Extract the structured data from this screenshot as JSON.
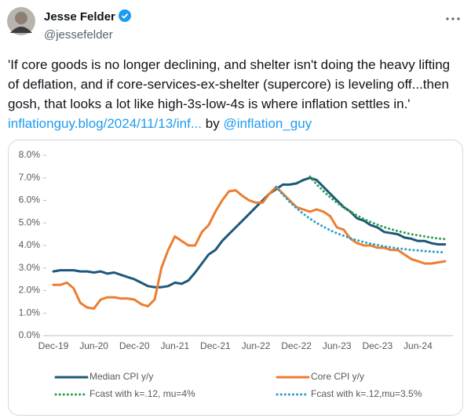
{
  "tweet": {
    "name": "Jesse Felder",
    "handle": "@jessefelder",
    "text": [
      "'If core goods is no longer declining, and shelter isn't doing the heavy lifting of deflation, and if core-services-ex-shelter (supercore) is leveling off...then gosh, that looks a lot like high-3s-low-4s is where inflation settles in.' ",
      "inflationguy.blog/2024/11/13/inf...",
      "by",
      "@inflation_guy"
    ]
  },
  "chart_data": {
    "type": "line",
    "categories": [
      "Dec-19",
      null,
      null,
      null,
      null,
      null,
      "Jun-20",
      null,
      null,
      null,
      null,
      null,
      "Dec-20",
      null,
      null,
      null,
      null,
      null,
      "Jun-21",
      null,
      null,
      null,
      null,
      null,
      "Dec-21",
      null,
      null,
      null,
      null,
      null,
      "Jun-22",
      null,
      null,
      null,
      null,
      null,
      "Dec-22",
      null,
      null,
      null,
      null,
      null,
      "Jun-23",
      null,
      null,
      null,
      null,
      null,
      "Dec-23",
      null,
      null,
      null,
      null,
      null,
      "Jun-24",
      null,
      null,
      null,
      null
    ],
    "ylim": [
      0,
      8
    ],
    "yticks": [
      {
        "value": 0,
        "label": "0.0%"
      },
      {
        "value": 1,
        "label": "1.0%"
      },
      {
        "value": 2,
        "label": "2.0%"
      },
      {
        "value": 3,
        "label": "3.0%"
      },
      {
        "value": 4,
        "label": "4.0%"
      },
      {
        "value": 5,
        "label": "5.0%"
      },
      {
        "value": 6,
        "label": "6.0%"
      },
      {
        "value": 7,
        "label": "7.0%"
      },
      {
        "value": 8,
        "label": "8.0%"
      }
    ],
    "grid": false,
    "series": [
      {
        "name": "Median CPI y/y",
        "color": "#1d5878",
        "style": "solid",
        "values": [
          2.85,
          2.9,
          2.9,
          2.9,
          2.85,
          2.85,
          2.8,
          2.85,
          2.75,
          2.8,
          2.7,
          2.6,
          2.5,
          2.35,
          2.2,
          2.15,
          2.15,
          2.2,
          2.35,
          2.3,
          2.45,
          2.8,
          3.2,
          3.6,
          3.8,
          4.2,
          4.5,
          4.8,
          5.1,
          5.4,
          5.7,
          6.0,
          6.3,
          6.5,
          6.7,
          6.7,
          6.75,
          6.9,
          7.0,
          6.9,
          6.6,
          6.3,
          6.0,
          5.7,
          5.5,
          5.2,
          5.1,
          4.9,
          4.8,
          4.6,
          4.55,
          4.5,
          4.35,
          4.3,
          4.2,
          4.2,
          4.1,
          4.05,
          4.05
        ]
      },
      {
        "name": "Core CPI y/y",
        "color": "#ed7d31",
        "style": "solid",
        "values": [
          2.25,
          2.25,
          2.35,
          2.1,
          1.45,
          1.25,
          1.2,
          1.6,
          1.7,
          1.7,
          1.65,
          1.65,
          1.6,
          1.4,
          1.3,
          1.6,
          3.0,
          3.8,
          4.4,
          4.2,
          4.0,
          4.0,
          4.6,
          4.9,
          5.5,
          6.0,
          6.4,
          6.45,
          6.2,
          6.0,
          5.9,
          5.9,
          6.3,
          6.6,
          6.3,
          6.0,
          5.7,
          5.6,
          5.5,
          5.6,
          5.5,
          5.3,
          4.8,
          4.7,
          4.3,
          4.1,
          4.0,
          4.0,
          3.9,
          3.9,
          3.8,
          3.8,
          3.6,
          3.4,
          3.3,
          3.2,
          3.2,
          3.25,
          3.3
        ]
      },
      {
        "name": "Fcast with k=.12, mu=4%",
        "color": "#2aa04a",
        "style": "dotted",
        "values": [
          null,
          null,
          null,
          null,
          null,
          null,
          null,
          null,
          null,
          null,
          null,
          null,
          null,
          null,
          null,
          null,
          null,
          null,
          null,
          null,
          null,
          null,
          null,
          null,
          null,
          null,
          null,
          null,
          null,
          null,
          null,
          null,
          null,
          null,
          null,
          null,
          null,
          null,
          7.05,
          6.71,
          6.41,
          6.14,
          5.9,
          5.68,
          5.5,
          5.33,
          5.17,
          5.04,
          4.92,
          4.81,
          4.72,
          4.64,
          4.57,
          4.5,
          4.45,
          4.4,
          4.35,
          4.31,
          4.28
        ]
      },
      {
        "name": "Fcast with k=.12,mu=3.5%",
        "color": "#2b9fcb",
        "style": "dotted",
        "values": [
          null,
          null,
          null,
          null,
          null,
          null,
          null,
          null,
          null,
          null,
          null,
          null,
          null,
          null,
          null,
          null,
          null,
          null,
          null,
          null,
          null,
          null,
          null,
          null,
          null,
          null,
          null,
          null,
          null,
          null,
          null,
          null,
          null,
          6.6,
          6.25,
          5.93,
          5.66,
          5.41,
          5.19,
          5.0,
          4.83,
          4.67,
          4.54,
          4.43,
          4.32,
          4.23,
          4.15,
          4.08,
          4.02,
          3.96,
          3.92,
          3.87,
          3.84,
          3.8,
          3.78,
          3.75,
          3.73,
          3.71,
          3.69
        ]
      }
    ]
  }
}
